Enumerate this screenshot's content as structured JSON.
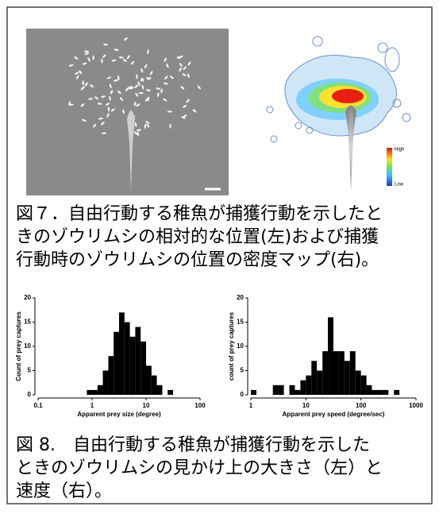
{
  "figure7": {
    "heatmap_legend": {
      "high": "High",
      "low": "Low"
    },
    "caption_lines": [
      "図７．自由行動する稚魚が捕獲行動を示したと",
      "きのゾウリムシの相対的な位置(左)および捕獲",
      "行動時のゾウリムシの位置の密度マップ(右)。"
    ]
  },
  "chart_data": [
    {
      "type": "histogram",
      "xscale": "log",
      "color": "#000000",
      "ylabel": "Count of prey captures",
      "xlabel": "Apparent prey size (degree)",
      "bins": [
        0.8,
        1.0,
        1.26,
        1.58,
        2.0,
        2.51,
        3.16,
        3.98,
        5.01,
        6.31,
        7.94,
        10.0,
        12.6,
        15.8,
        20.0,
        25.1,
        31.6
      ],
      "counts": [
        1,
        1,
        2,
        5,
        8,
        13,
        17,
        15,
        12,
        14,
        11,
        6,
        4,
        2,
        0,
        1
      ],
      "xlim": [
        0.1,
        100
      ],
      "xticks": [
        0.1,
        1,
        10,
        100
      ],
      "ylim": [
        0,
        20
      ],
      "yticks": [
        0,
        5,
        10,
        15,
        20
      ]
    },
    {
      "type": "histogram",
      "xscale": "log",
      "color": "#000000",
      "ylabel": "count of prey captures",
      "xlabel": "Apparent prey speed (degree/sec)",
      "bins": [
        1.0,
        1.26,
        1.58,
        2.0,
        2.51,
        3.16,
        3.98,
        5.01,
        6.31,
        7.94,
        10.0,
        12.6,
        15.8,
        20.0,
        25.1,
        31.6,
        39.8,
        50.1,
        63.1,
        79.4,
        100,
        126,
        158,
        200,
        251,
        316,
        398,
        501
      ],
      "counts": [
        1,
        0,
        0,
        0,
        2,
        2,
        0,
        2,
        1,
        3,
        4,
        7,
        5,
        9,
        16,
        9,
        9,
        7,
        9,
        5,
        4,
        2,
        1,
        1,
        1,
        0,
        1
      ],
      "xlim": [
        1,
        1000
      ],
      "xticks": [
        1,
        10,
        100,
        1000
      ],
      "ylim": [
        0,
        20
      ],
      "yticks": [
        0,
        5,
        10,
        15,
        20
      ]
    }
  ],
  "figure8": {
    "caption_lines": [
      "図 8.　自由行動する稚魚が捕獲行動を示した",
      "ときのゾウリムシの見かけ上の大きさ（左）と",
      "速度（右）。"
    ]
  }
}
